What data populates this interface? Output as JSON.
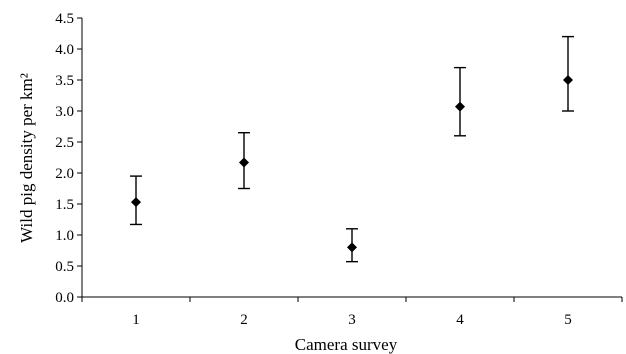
{
  "chart_data": {
    "type": "scatter",
    "title": "",
    "xlabel": "Camera survey",
    "ylabel": "Wild pig density per km²",
    "categories": [
      "1",
      "2",
      "3",
      "4",
      "5"
    ],
    "x": [
      1,
      2,
      3,
      4,
      5
    ],
    "xlim": [
      0.5,
      5.5
    ],
    "ylim": [
      0,
      4.5
    ],
    "yticks": [
      "0.0",
      "0.5",
      "1.0",
      "1.5",
      "2.0",
      "2.5",
      "3.0",
      "3.5",
      "4.0",
      "4.5"
    ],
    "series": [
      {
        "values": [
          1.53,
          2.17,
          0.8,
          3.07,
          3.5
        ],
        "error_low": [
          1.17,
          1.75,
          0.57,
          2.6,
          3.0
        ],
        "error_high": [
          1.95,
          2.65,
          1.1,
          3.7,
          4.2
        ],
        "marker": "diamond",
        "color": "#000000"
      }
    ],
    "grid": false,
    "legend": "none"
  }
}
